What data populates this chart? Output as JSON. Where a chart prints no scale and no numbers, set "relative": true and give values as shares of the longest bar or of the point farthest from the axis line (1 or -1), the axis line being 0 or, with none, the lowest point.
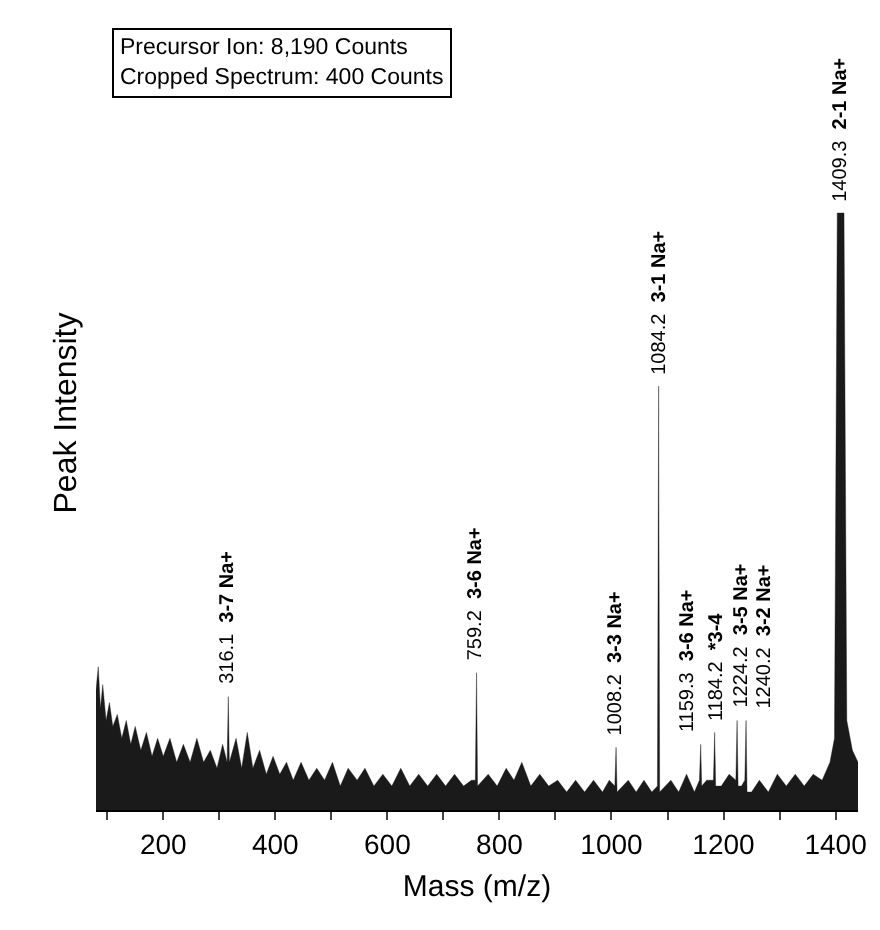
{
  "chart_data": {
    "type": "area",
    "relative": true,
    "xlabel": "Mass (m/z)",
    "ylabel": "Peak Intensity",
    "xlim": [
      80,
      1440
    ],
    "xticks": [
      {
        "value": 100,
        "label": null
      },
      200,
      {
        "value": 300,
        "label": null
      },
      400,
      {
        "value": 500,
        "label": null
      },
      600,
      {
        "value": 700,
        "label": null
      },
      800,
      {
        "value": 900,
        "label": null
      },
      1000,
      {
        "value": 1100,
        "label": null
      },
      1200,
      {
        "value": 1300,
        "label": null
      },
      1400
    ],
    "series": [
      {
        "color": "#1a1a1a",
        "x": [
          80,
          84,
          88,
          92,
          98,
          104,
          110,
          118,
          126,
          134,
          142,
          150,
          160,
          170,
          180,
          190,
          200,
          212,
          224,
          236,
          248,
          260,
          272,
          284,
          296,
          306,
          314,
          316.1,
          318,
          330,
          340,
          350,
          360,
          372,
          384,
          396,
          408,
          420,
          432,
          446,
          460,
          474,
          488,
          502,
          516,
          530,
          546,
          560,
          576,
          592,
          608,
          624,
          640,
          656,
          672,
          688,
          704,
          720,
          736,
          750,
          757,
          759.2,
          761,
          780,
          796,
          812,
          826,
          840,
          856,
          872,
          888,
          904,
          920,
          936,
          952,
          968,
          984,
          996,
          1006,
          1008.2,
          1010,
          1030,
          1044,
          1058,
          1072,
          1082,
          1084.2,
          1086,
          1106,
          1120,
          1134,
          1148,
          1157,
          1159.3,
          1161,
          1170,
          1182,
          1184.2,
          1186,
          1196,
          1210,
          1222,
          1224.2,
          1226,
          1232,
          1238,
          1240.2,
          1242,
          1250,
          1264,
          1280,
          1296,
          1312,
          1328,
          1344,
          1360,
          1376,
          1390,
          1398,
          1403,
          1409.3,
          1415,
          1420,
          1430,
          1440
        ],
        "values": [
          0.2,
          0.24,
          0.17,
          0.21,
          0.15,
          0.18,
          0.14,
          0.16,
          0.12,
          0.15,
          0.11,
          0.14,
          0.1,
          0.13,
          0.09,
          0.12,
          0.09,
          0.12,
          0.08,
          0.11,
          0.08,
          0.12,
          0.08,
          0.1,
          0.07,
          0.11,
          0.08,
          0.19,
          0.08,
          0.12,
          0.07,
          0.13,
          0.07,
          0.1,
          0.06,
          0.09,
          0.06,
          0.08,
          0.05,
          0.08,
          0.05,
          0.07,
          0.05,
          0.08,
          0.04,
          0.07,
          0.05,
          0.07,
          0.04,
          0.06,
          0.04,
          0.07,
          0.04,
          0.06,
          0.04,
          0.06,
          0.04,
          0.06,
          0.04,
          0.05,
          0.05,
          0.23,
          0.04,
          0.06,
          0.04,
          0.07,
          0.05,
          0.08,
          0.04,
          0.06,
          0.04,
          0.05,
          0.03,
          0.05,
          0.03,
          0.05,
          0.03,
          0.05,
          0.04,
          0.105,
          0.03,
          0.05,
          0.03,
          0.05,
          0.03,
          0.04,
          0.71,
          0.03,
          0.05,
          0.03,
          0.06,
          0.03,
          0.05,
          0.11,
          0.04,
          0.05,
          0.05,
          0.13,
          0.04,
          0.04,
          0.06,
          0.05,
          0.15,
          0.04,
          0.04,
          0.05,
          0.15,
          0.03,
          0.03,
          0.05,
          0.03,
          0.06,
          0.04,
          0.06,
          0.04,
          0.06,
          0.05,
          0.08,
          0.12,
          1,
          1,
          1,
          0.15,
          0.1,
          0.08
        ]
      }
    ],
    "annotations": [
      "Precursor Ion: 8,190 Counts",
      "Cropped Spectrum: 400 Counts",
      {
        "text": "316.1 3-7 Na+",
        "x": 316.1,
        "y": 0.19
      },
      {
        "text": "759.2 3-6 Na+",
        "x": 759.2,
        "y": 0.23
      },
      {
        "text": "1008.2 3-3 Na+",
        "x": 1008.2,
        "y": 0.105
      },
      {
        "text": "1084.2 3-1 Na+",
        "x": 1084.2,
        "y": 0.71
      },
      {
        "text": "1159.3 3-6 Na+",
        "x": 1159.3,
        "y": 0.11
      },
      {
        "text": "1184.2 *3-4",
        "x": 1184.2,
        "y": 0.13
      },
      {
        "text": "1224.2 3-5 Na+",
        "x": 1224.2,
        "y": 0.15
      },
      {
        "text": "1240.2 3-2 Na+",
        "x": 1240.2,
        "y": 0.15
      },
      {
        "text": "1409.3 2-1 Na+",
        "x": 1409.3,
        "y": 1
      }
    ]
  }
}
